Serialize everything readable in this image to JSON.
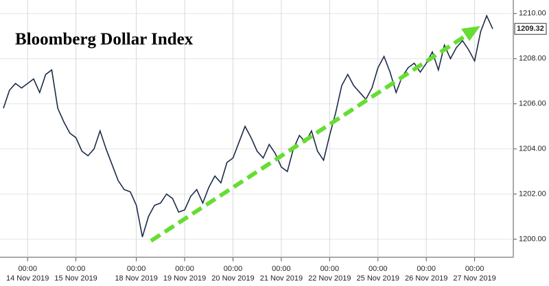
{
  "chart_data": {
    "type": "line",
    "title": "Bloomberg Dollar Index",
    "categories": [
      null,
      null,
      null,
      null,
      "00:00\n14 Nov 2019",
      null,
      null,
      null,
      null,
      null,
      null,
      null,
      "00:00\n15 Nov 2019",
      null,
      null,
      null,
      null,
      null,
      null,
      null,
      null,
      null,
      "00:00\n18 Nov 2019",
      null,
      null,
      null,
      null,
      null,
      null,
      null,
      "00:00\n19 Nov 2019",
      null,
      null,
      null,
      null,
      null,
      null,
      null,
      "00:00\n20 Nov 2019",
      null,
      null,
      null,
      null,
      null,
      null,
      null,
      "00:00\n21 Nov 2019",
      null,
      null,
      null,
      null,
      null,
      null,
      null,
      "00:00\n22 Nov 2019",
      null,
      null,
      null,
      null,
      null,
      null,
      null,
      "00:00\n25 Nov 2019",
      null,
      null,
      null,
      null,
      null,
      null,
      null,
      "00:00\n26 Nov 2019",
      null,
      null,
      null,
      null,
      null,
      null,
      null,
      "00:00\n27 Nov 2019",
      null,
      null,
      null
    ],
    "series": [
      {
        "color": "#1b2a48",
        "values": [
          1205.8,
          1206.6,
          1206.9,
          1206.7,
          1206.9,
          1207.1,
          1206.5,
          1207.3,
          1207.5,
          1205.8,
          1205.2,
          1204.7,
          1204.5,
          1203.9,
          1203.7,
          1204.0,
          1204.8,
          1204.0,
          1203.3,
          1202.6,
          1202.2,
          1202.1,
          1201.5,
          1200.1,
          1201.0,
          1201.5,
          1201.6,
          1202.0,
          1201.8,
          1201.2,
          1201.3,
          1201.9,
          1202.2,
          1201.6,
          1202.3,
          1202.8,
          1202.5,
          1203.4,
          1203.6,
          1204.3,
          1205.0,
          1204.5,
          1203.9,
          1203.6,
          1204.2,
          1203.8,
          1203.2,
          1203.0,
          1204.0,
          1204.6,
          1204.3,
          1204.8,
          1203.9,
          1203.5,
          1204.6,
          1205.6,
          1206.8,
          1207.3,
          1206.8,
          1206.5,
          1206.2,
          1206.7,
          1207.6,
          1208.1,
          1207.4,
          1206.5,
          1207.2,
          1207.6,
          1207.8,
          1207.4,
          1207.8,
          1208.3,
          1207.5,
          1208.6,
          1208.0,
          1208.5,
          1208.8,
          1208.4,
          1207.9,
          1209.2,
          1209.9,
          1209.32
        ]
      }
    ],
    "ylim": [
      1199.2,
      1210.6
    ],
    "yticks": [
      {
        "value": 1200,
        "label": "1200.00"
      },
      {
        "value": 1202,
        "label": "1202.00"
      },
      {
        "value": 1204,
        "label": "1204.00"
      },
      {
        "value": 1206,
        "label": "1206.00"
      },
      {
        "value": 1208,
        "label": "1208.00"
      },
      {
        "value": 1210,
        "label": "1210.00"
      }
    ],
    "grid": true
  }
}
